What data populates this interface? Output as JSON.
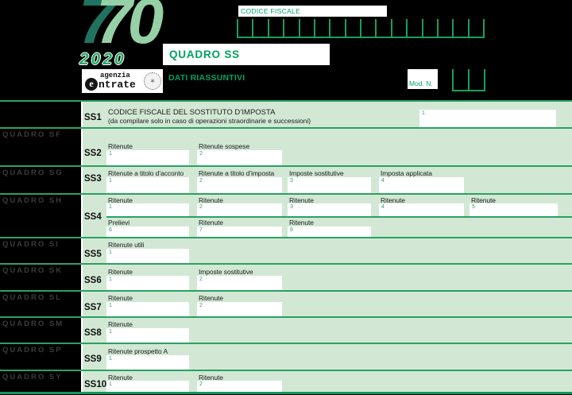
{
  "header": {
    "logo_number_dark": "7",
    "logo_number_light": "70",
    "logo_year": "2020",
    "agency_line1": "agenzia",
    "agency_line2": "ntrate",
    "quadro_title": "QUADRO SS",
    "subtitle": "DATI RIASSUNTIVI",
    "codice_fiscale_label": "CODICE FISCALE",
    "codice_fiscale_cells": 16,
    "mod_n_label": "Mod. N.",
    "mod_n_cells": 2
  },
  "colors": {
    "page_background": "#000000",
    "band_background": "#d2e8d5",
    "separator_green": "#2ba163",
    "comb_green": "#17a05b",
    "accent_green_text": "#00a161",
    "field_number_green": "#2ca466",
    "logo_dark_green": "#20735f",
    "logo_light_green": "#95d0a6",
    "sidebar_label_gray": "#3b3b3b"
  },
  "form": {
    "sections": [
      {
        "id": "SS1",
        "sidebar_label": null,
        "title": "CODICE FISCALE DEL SOSTITUTO D’IMPOSTA",
        "subtitle": "(da compilare solo in caso di operazioni straordinarie e successioni)",
        "rows": [
          {
            "fields": [
              {
                "col": null,
                "num": "1",
                "label": ""
              }
            ]
          }
        ]
      },
      {
        "id": "SS2",
        "sidebar_label": "QUADRO SF",
        "rows": [
          {
            "fields": [
              {
                "col": 0,
                "num": "1",
                "label": "Ritenute"
              },
              {
                "col": 1,
                "num": "2",
                "label": "Ritenute sospese"
              }
            ]
          }
        ]
      },
      {
        "id": "SS3",
        "sidebar_label": "QUADRO SG",
        "rows": [
          {
            "fields": [
              {
                "col": 0,
                "num": "1",
                "label": "Ritenute a titolo d’acconto"
              },
              {
                "col": 1,
                "num": "2",
                "label": "Ritenute a titolo d’imposta"
              },
              {
                "col": 2,
                "num": "3",
                "label": "Imposte sostitutive"
              },
              {
                "col": 3,
                "num": "4",
                "label": "Imposta applicata"
              }
            ]
          }
        ]
      },
      {
        "id": "SS4",
        "sidebar_label": "QUADRO SH",
        "rows": [
          {
            "fields": [
              {
                "col": 0,
                "num": "1",
                "label": "Ritenute"
              },
              {
                "col": 1,
                "num": "2",
                "label": "Ritenute"
              },
              {
                "col": 2,
                "num": "3",
                "label": "Ritenute"
              },
              {
                "col": 3,
                "num": "4",
                "label": "Ritenute"
              },
              {
                "col": 4,
                "num": "5",
                "label": "Ritenute"
              }
            ]
          },
          {
            "fields": [
              {
                "col": 0,
                "num": "6",
                "label": "Prelievi"
              },
              {
                "col": 1,
                "num": "7",
                "label": "Ritenute"
              },
              {
                "col": 2,
                "num": "8",
                "label": "Ritenute"
              }
            ]
          }
        ]
      },
      {
        "id": "SS5",
        "sidebar_label": "QUADRO SI",
        "rows": [
          {
            "fields": [
              {
                "col": 0,
                "num": "1",
                "label": "Ritenute utili"
              }
            ]
          }
        ]
      },
      {
        "id": "SS6",
        "sidebar_label": "QUADRO SK",
        "rows": [
          {
            "fields": [
              {
                "col": 0,
                "num": "1",
                "label": "Ritenute"
              },
              {
                "col": 1,
                "num": "2",
                "label": "Imposte sostitutive"
              }
            ]
          }
        ]
      },
      {
        "id": "SS7",
        "sidebar_label": "QUADRO SL",
        "rows": [
          {
            "fields": [
              {
                "col": 0,
                "num": "1",
                "label": "Ritenute"
              },
              {
                "col": 1,
                "num": "2",
                "label": "Ritenute"
              }
            ]
          }
        ]
      },
      {
        "id": "SS8",
        "sidebar_label": "QUADRO SM",
        "rows": [
          {
            "fields": [
              {
                "col": 0,
                "num": "1",
                "label": "Ritenute"
              }
            ]
          }
        ]
      },
      {
        "id": "SS9",
        "sidebar_label": "QUADRO SP",
        "rows": [
          {
            "fields": [
              {
                "col": 0,
                "num": "1",
                "label": "Ritenute prospetto A"
              }
            ]
          }
        ]
      },
      {
        "id": "SS10",
        "sidebar_label": "QUADRO SY",
        "rows": [
          {
            "fields": [
              {
                "col": 0,
                "num": "1",
                "label": "Ritenute"
              },
              {
                "col": 1,
                "num": "2",
                "label": "Ritenute"
              }
            ]
          }
        ]
      }
    ]
  }
}
